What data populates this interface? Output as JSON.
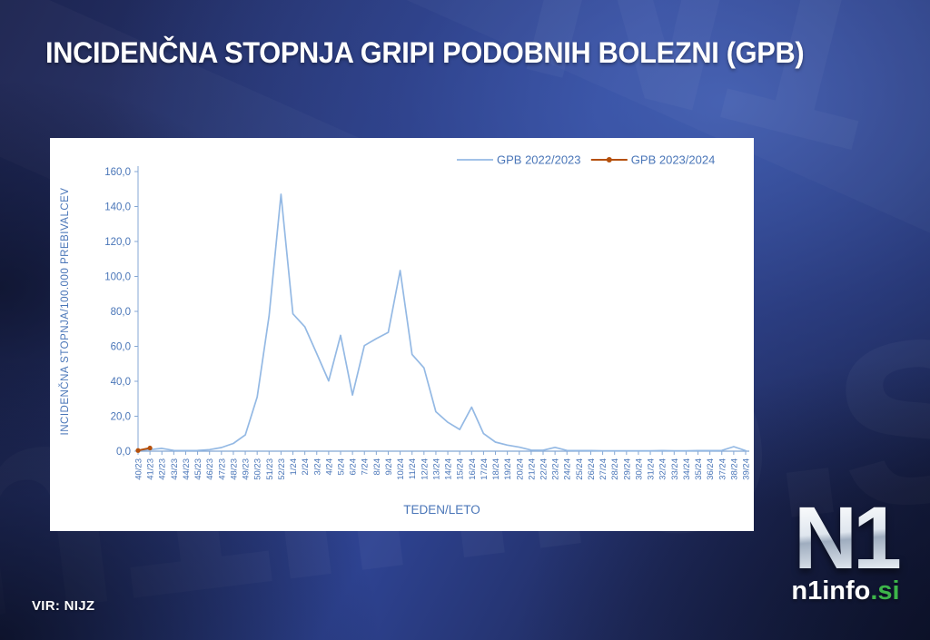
{
  "header": {
    "title": "INCIDENČNA STOPNJA GRIPI PODOBNIH BOLEZNI (GPB)"
  },
  "footer": {
    "source": "VIR: NIJZ"
  },
  "logo": {
    "mark": "N1",
    "site": "n1info",
    "tld": ".si",
    "tld_color": "#3db54a"
  },
  "background": {
    "watermarks": [
      "n1info.si",
      "N1"
    ]
  },
  "chart_data": {
    "type": "line",
    "title": "",
    "xlabel": "TEDEN/LETO",
    "ylabel": "INCIDENČNA  STOPNJA/100.000  PREBIVALCEV",
    "ylim": [
      0,
      160
    ],
    "ytick_step": 20,
    "ytick_labels": [
      "0,0",
      "20,0",
      "40,0",
      "60,0",
      "80,0",
      "100,0",
      "120,0",
      "140,0",
      "160,0"
    ],
    "grid": false,
    "legend_position": "top-right",
    "axis_color": "#84a7d4",
    "text_color": "#4a76b8",
    "categories": [
      "40/23",
      "41/23",
      "42/23",
      "43/23",
      "44/23",
      "45/23",
      "46/23",
      "47/23",
      "48/23",
      "49/23",
      "50/23",
      "51/23",
      "52/23",
      "1/24",
      "2/24",
      "3/24",
      "4/24",
      "5/24",
      "6/24",
      "7/24",
      "8/24",
      "9/24",
      "10/24",
      "11/24",
      "12/24",
      "13/24",
      "14/24",
      "15/24",
      "16/24",
      "17/24",
      "18/24",
      "19/24",
      "20/24",
      "21/24",
      "22/24",
      "23/24",
      "24/24",
      "25/24",
      "26/24",
      "27/24",
      "28/24",
      "29/24",
      "30/24",
      "31/24",
      "32/24",
      "33/24",
      "34/24",
      "35/24",
      "36/24",
      "37/24",
      "38/24",
      "39/24"
    ],
    "series": [
      {
        "name": "GPB 2022/2023",
        "color": "#94b9e4",
        "marker": "none",
        "width": 1.7,
        "values": [
          0.5,
          0.9,
          1.6,
          0.4,
          0.3,
          0.4,
          0.9,
          2.1,
          4.4,
          9.3,
          31.0,
          77.5,
          147.0,
          78.6,
          71.2,
          55.8,
          40.2,
          66.3,
          32.1,
          60.4,
          64.4,
          68.0,
          103.4,
          55.4,
          47.7,
          22.6,
          16.5,
          12.4,
          25.2,
          10.1,
          5.2,
          3.5,
          2.3,
          0.6,
          0.5,
          2.2,
          0.4,
          0.3,
          0.3,
          0.2,
          0.2,
          0.2,
          0.2,
          0.2,
          0.3,
          0.2,
          0.2,
          0.3,
          0.3,
          0.4,
          2.6,
          0.3
        ]
      },
      {
        "name": "GPB 2023/2024",
        "color": "#b5500b",
        "marker": "dot",
        "width": 2,
        "values": [
          0.4,
          1.8
        ]
      }
    ]
  }
}
